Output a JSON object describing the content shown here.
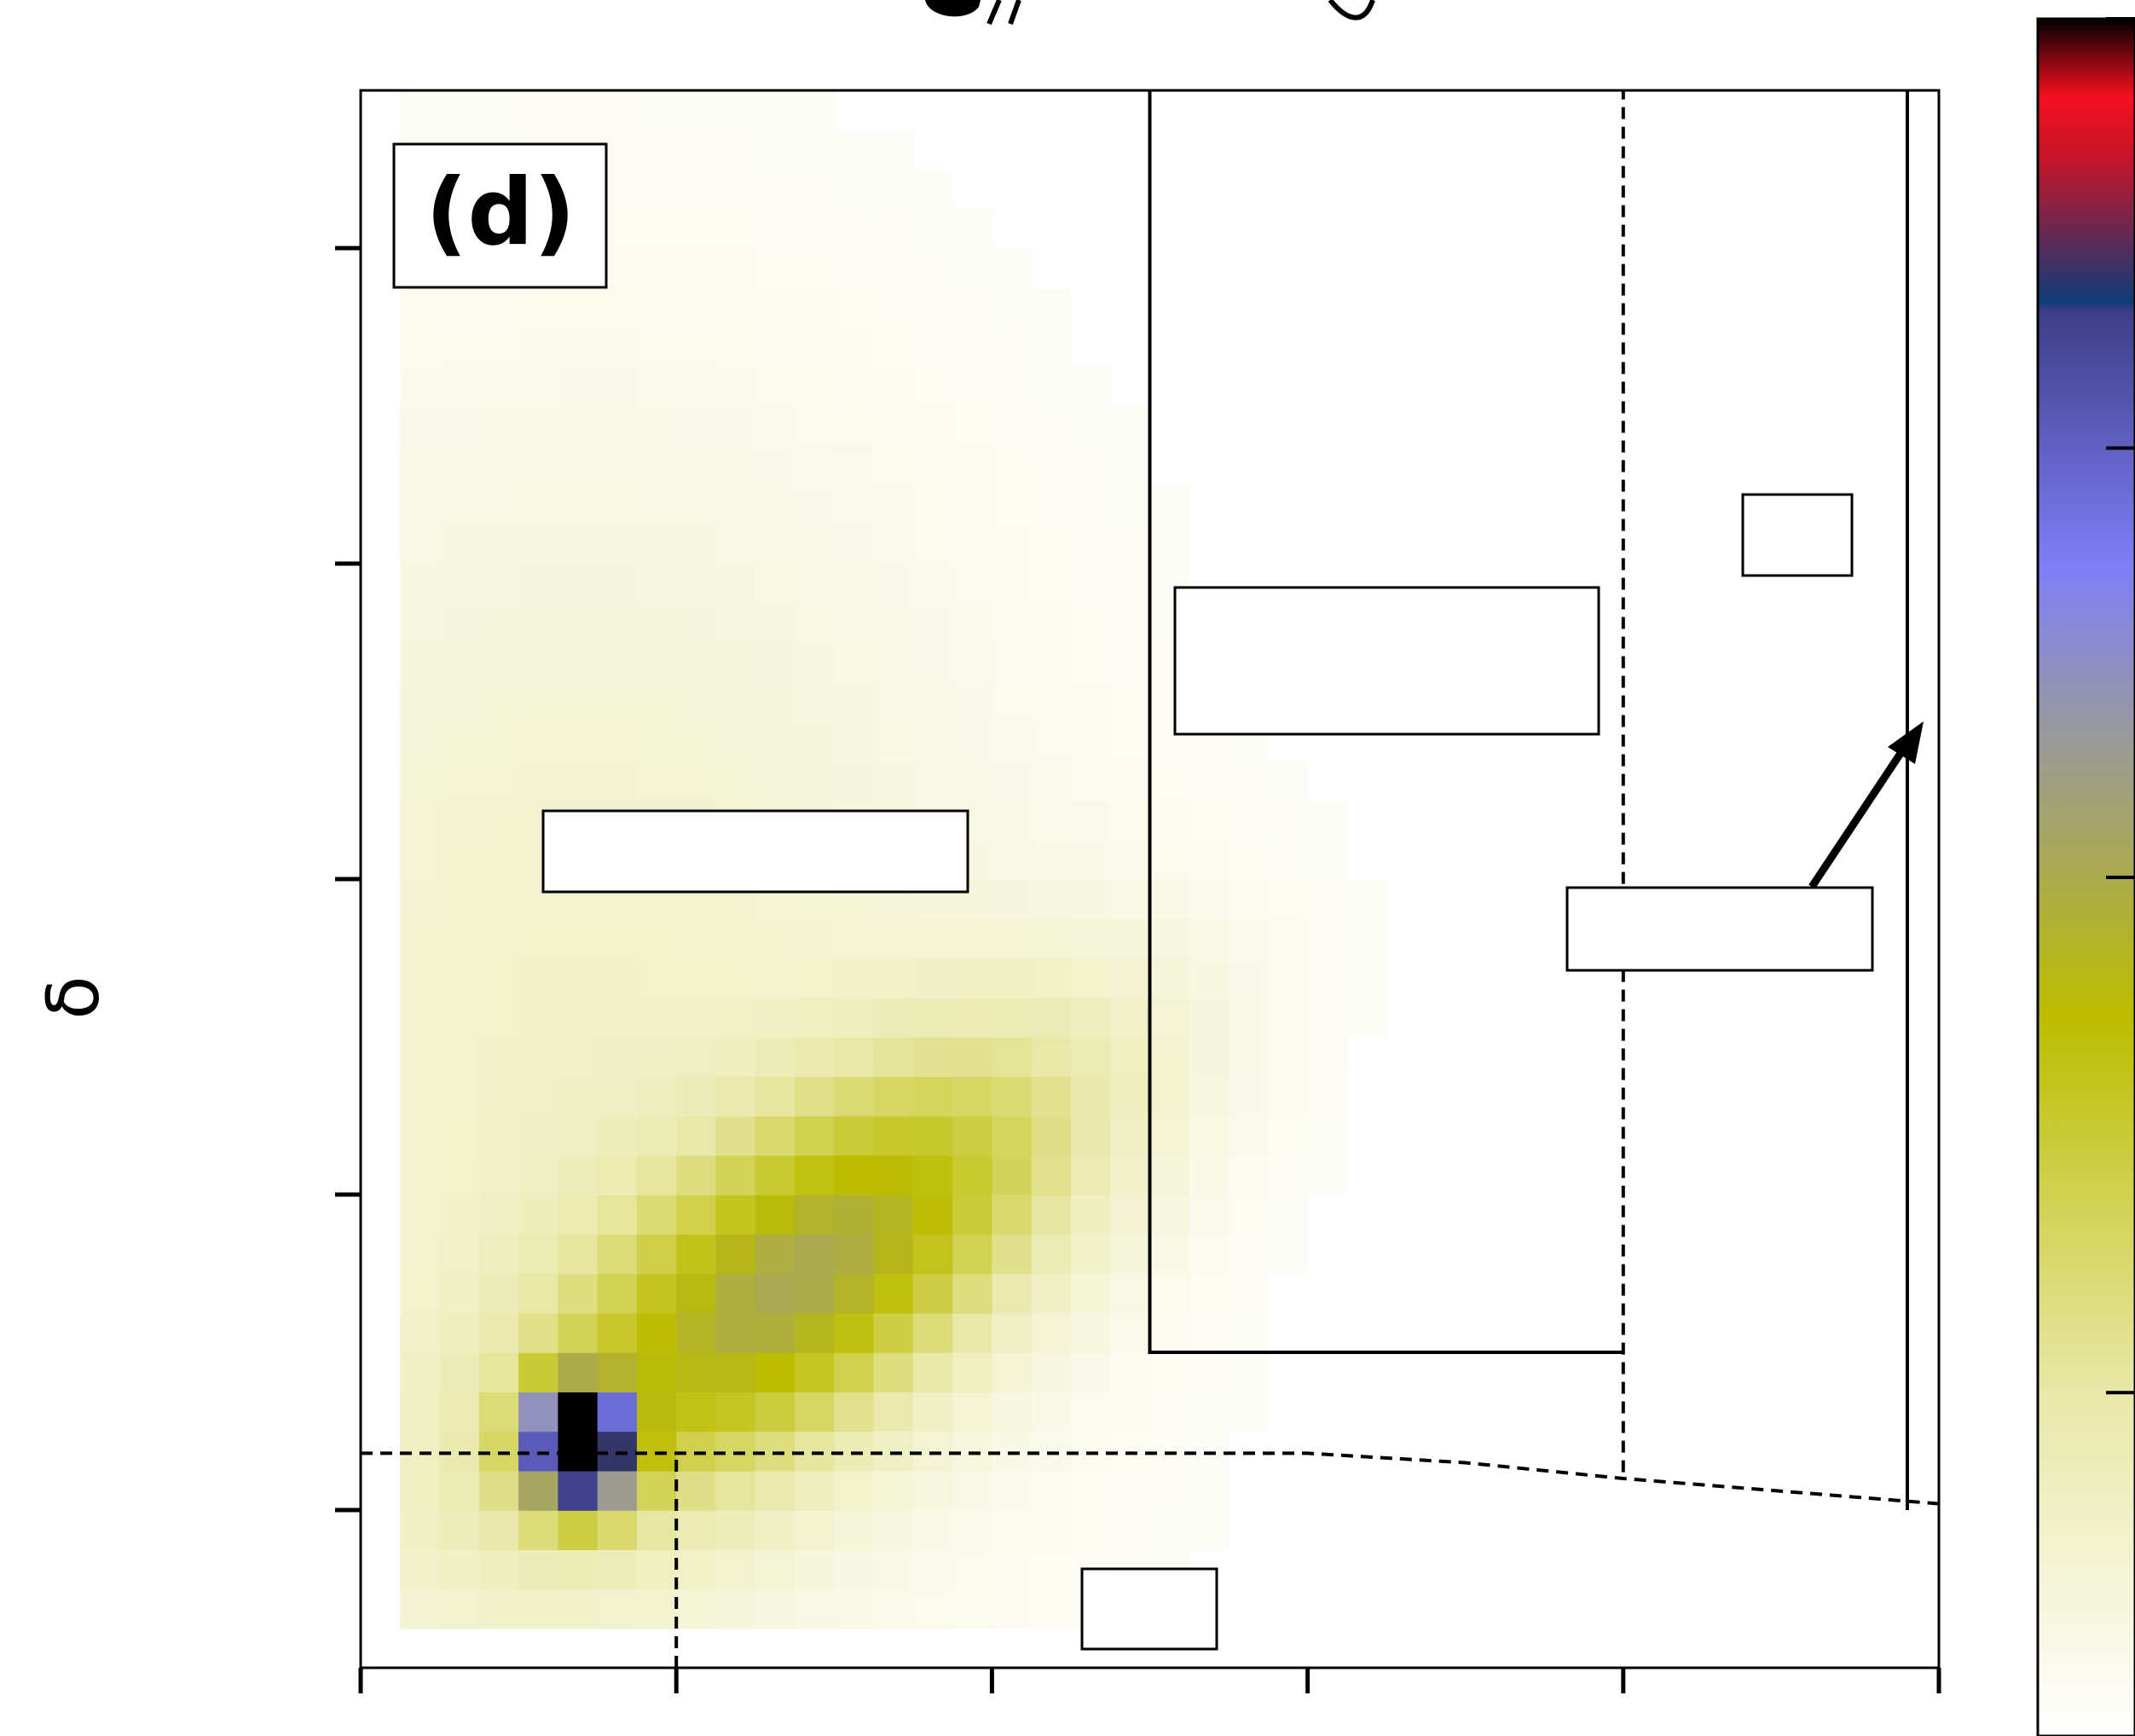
{
  "chart_data": {
    "type": "heatmap",
    "title": "",
    "panel_label": "(d)",
    "xlabel": "",
    "ylabel": "δ",
    "xlim": [
      0,
      5
    ],
    "ylim": [
      0,
      5
    ],
    "x_tick_values": [
      0,
      1,
      2,
      3,
      4,
      5
    ],
    "y_tick_values": [
      0.5,
      1.5,
      2.5,
      3.5,
      4.5
    ],
    "colorbar": {
      "stops": [
        {
          "t": 0.0,
          "color": "#ffffff"
        },
        {
          "t": 0.2,
          "color": "#e8e8a8"
        },
        {
          "t": 0.42,
          "color": "#bcbc00"
        },
        {
          "t": 0.58,
          "color": "#9a9a9a"
        },
        {
          "t": 0.68,
          "color": "#7f7ff8"
        },
        {
          "t": 0.83,
          "color": "#3d3d87"
        },
        {
          "t": 0.835,
          "color": "#0f3c78"
        },
        {
          "t": 0.92,
          "color": "#c81428"
        },
        {
          "t": 0.955,
          "color": "#f51020"
        },
        {
          "t": 1.0,
          "color": "#000000"
        }
      ]
    },
    "grid": {
      "rows": 40,
      "cols": 40,
      "cell": 0.125,
      "peak": {
        "row": 6,
        "col": 5.5
      },
      "comment_free": true
    },
    "reference_lines": {
      "horizontal_dashed": {
        "x": [
          0,
          3.0,
          3.5,
          4.0,
          5.0
        ],
        "y": [
          0.68,
          0.68,
          0.65,
          0.6,
          0.52
        ]
      },
      "vertical_dashed_short": {
        "x": 1.0,
        "y": [
          0,
          0.68
        ]
      },
      "vertical_dashed_tall": {
        "x": 4.0,
        "y": [
          0.62,
          5.0
        ]
      },
      "solid_region": {
        "x": [
          2.5,
          4.0
        ],
        "y": [
          1.0,
          5.0
        ]
      },
      "solid_vertical": {
        "x": 4.9,
        "y": [
          0.5,
          5.0
        ]
      }
    },
    "annotation_boxes": [
      {
        "text": ""
      },
      {
        "text": ""
      },
      {
        "text": ""
      },
      {
        "text": ""
      },
      {
        "text": ""
      }
    ]
  }
}
